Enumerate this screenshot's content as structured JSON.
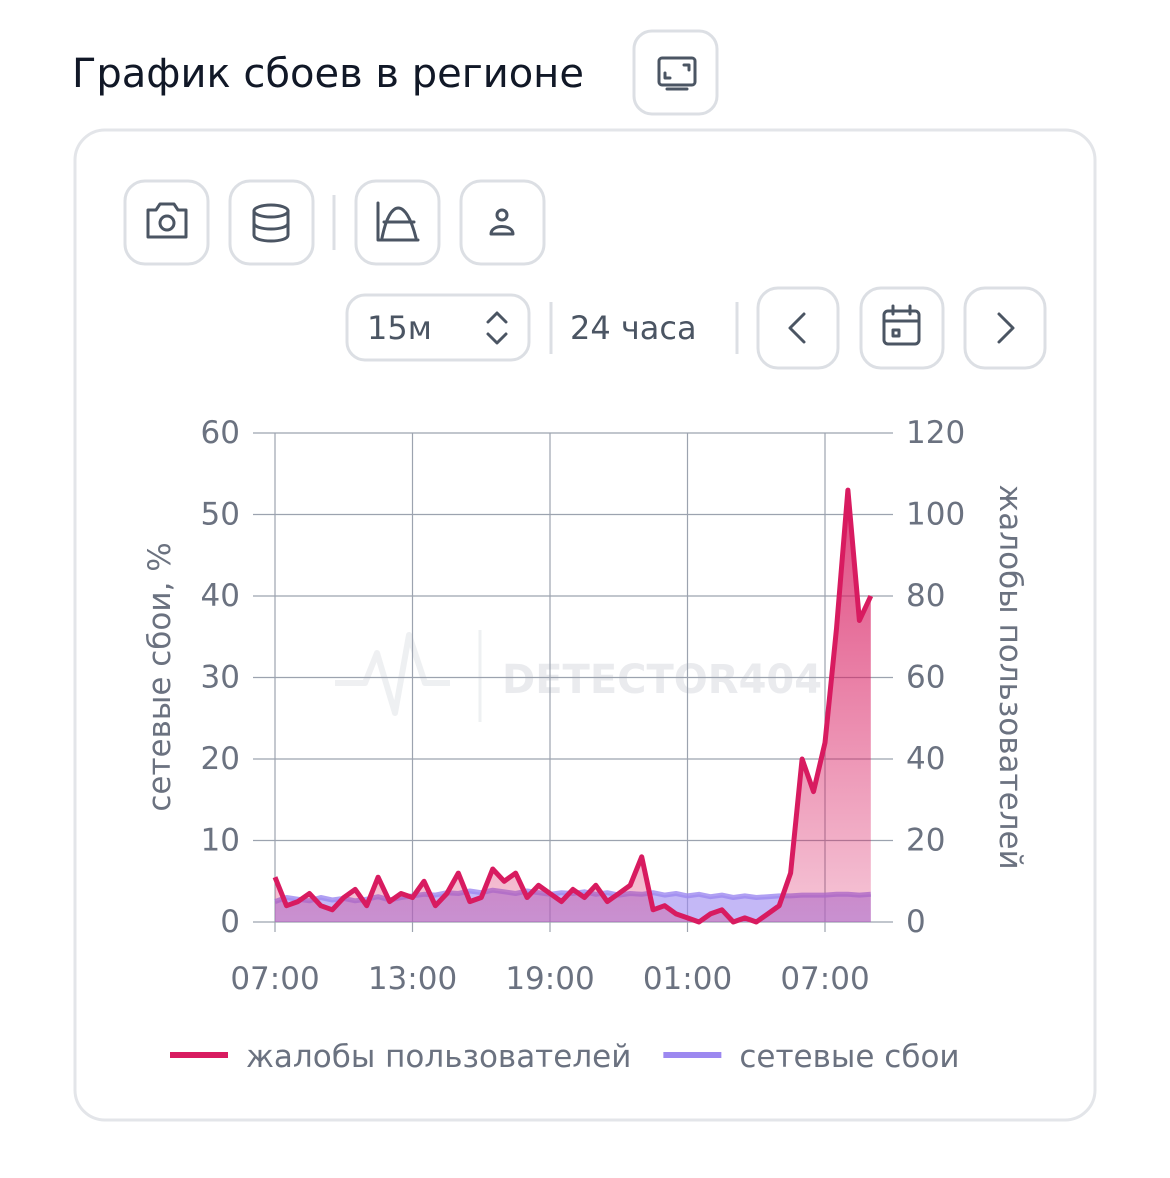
{
  "header": {
    "title": "График сбоев в регионе"
  },
  "controls": {
    "interval": "15м",
    "range": "24 часа"
  },
  "chart_data": {
    "type": "line",
    "categories": [
      "07:00",
      null,
      null,
      null,
      null,
      null,
      null,
      null,
      null,
      null,
      null,
      null,
      "13:00",
      null,
      null,
      null,
      null,
      null,
      null,
      null,
      null,
      null,
      null,
      null,
      "19:00",
      null,
      null,
      null,
      null,
      null,
      null,
      null,
      null,
      null,
      null,
      null,
      "01:00",
      null,
      null,
      null,
      null,
      null,
      null,
      null,
      null,
      null,
      null,
      null,
      "07:00",
      null,
      null,
      null,
      null
    ],
    "series": [
      {
        "name": "жалобы пользователей",
        "color": "#d81b60",
        "axis": "y2",
        "values": [
          11,
          4,
          5,
          7,
          4,
          3,
          6,
          8,
          4,
          11,
          5,
          7,
          6,
          10,
          4,
          7,
          12,
          5,
          6,
          13,
          10,
          12,
          6,
          9,
          7,
          5,
          8,
          6,
          9,
          5,
          7,
          9,
          16,
          3,
          4,
          2,
          1,
          0,
          2,
          3,
          0,
          1,
          0,
          2,
          4,
          12,
          40,
          32,
          44,
          72,
          106,
          74,
          80
        ]
      },
      {
        "name": "сетевые сбои",
        "color": "#9c88f0",
        "values": [
          2.5,
          3,
          2.8,
          2.6,
          3,
          2.7,
          2.9,
          2.6,
          2.8,
          3.1,
          2.7,
          3,
          3.2,
          3.4,
          3.3,
          3.6,
          3.5,
          3.8,
          3.6,
          3.9,
          3.7,
          3.5,
          3.8,
          3.6,
          3.4,
          3.6,
          3.5,
          3.7,
          3.4,
          3.6,
          3.3,
          3.5,
          3.4,
          3.6,
          3.3,
          3.5,
          3.2,
          3.4,
          3.1,
          3.3,
          3.0,
          3.2,
          3.0,
          3.1,
          3.2,
          3.2,
          3.3,
          3.3,
          3.3,
          3.4,
          3.4,
          3.3,
          3.4
        ]
      }
    ],
    "y_label": "сетевые сбои, %",
    "y2_label": "жалобы пользователей",
    "ylim": [
      0,
      60
    ],
    "yticks": [
      0,
      10,
      20,
      30,
      40,
      50,
      60
    ],
    "y2lim": [
      0,
      120
    ],
    "y2ticks": [
      0,
      20,
      40,
      60,
      80,
      100,
      120
    ],
    "grid": true,
    "legend": "bottom",
    "watermark": "DETECTOR404"
  }
}
